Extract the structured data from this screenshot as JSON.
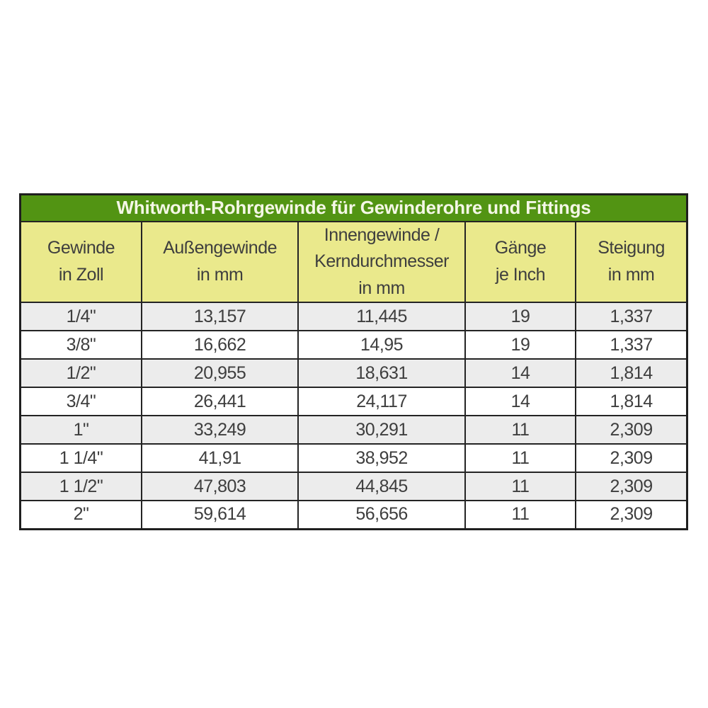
{
  "table": {
    "title": "Whitworth-Rohrgewinde für Gewinderohre und Fittings",
    "headers": [
      "Gewinde\nin Zoll",
      "Außengewinde\nin mm",
      "Innengewinde /\nKerndurchmesser\nin mm",
      "Gänge\nje Inch",
      "Steigung\nin mm"
    ],
    "rows": [
      [
        "1/4\"",
        "13,157",
        "11,445",
        "19",
        "1,337"
      ],
      [
        "3/8\"",
        "16,662",
        "14,95",
        "19",
        "1,337"
      ],
      [
        "1/2\"",
        "20,955",
        "18,631",
        "14",
        "1,814"
      ],
      [
        "3/4\"",
        "26,441",
        "24,117",
        "14",
        "1,814"
      ],
      [
        "1\"",
        "33,249",
        "30,291",
        "11",
        "2,309"
      ],
      [
        "1 1/4\"",
        "41,91",
        "38,952",
        "11",
        "2,309"
      ],
      [
        "1 1/2\"",
        "47,803",
        "44,845",
        "11",
        "2,309"
      ],
      [
        "2\"",
        "59,614",
        "56,656",
        "11",
        "2,309"
      ]
    ]
  },
  "chart_data": {
    "type": "table",
    "title": "Whitworth-Rohrgewinde für Gewinderohre und Fittings",
    "columns": [
      "Gewinde in Zoll",
      "Außengewinde in mm",
      "Innengewinde / Kerndurchmesser in mm",
      "Gänge je Inch",
      "Steigung in mm"
    ],
    "rows": [
      [
        "1/4\"",
        "13,157",
        "11,445",
        "19",
        "1,337"
      ],
      [
        "3/8\"",
        "16,662",
        "14,95",
        "19",
        "1,337"
      ],
      [
        "1/2\"",
        "20,955",
        "18,631",
        "14",
        "1,814"
      ],
      [
        "3/4\"",
        "26,441",
        "24,117",
        "14",
        "1,814"
      ],
      [
        "1\"",
        "33,249",
        "30,291",
        "11",
        "2,309"
      ],
      [
        "1 1/4\"",
        "41,91",
        "38,952",
        "11",
        "2,309"
      ],
      [
        "1 1/2\"",
        "47,803",
        "44,845",
        "11",
        "2,309"
      ],
      [
        "2\"",
        "59,614",
        "56,656",
        "11",
        "2,309"
      ]
    ],
    "layout_hints": {
      "row_striping": "odd rows light gray, even rows white",
      "header_background": "#eae98c",
      "title_background": "#529413"
    }
  },
  "colors": {
    "title_bg": "#529413",
    "title_text": "#f4f7e6",
    "header_bg": "#eae98c",
    "row_stripe": "#ececec",
    "row_plain": "#ffffff",
    "border": "#242424",
    "body_text": "#3e3e3e"
  }
}
